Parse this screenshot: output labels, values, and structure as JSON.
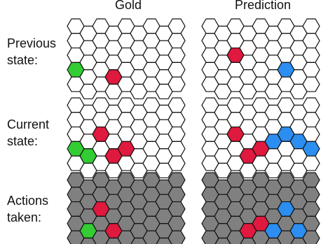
{
  "columns": [
    "Gold",
    "Prediction"
  ],
  "rows": [
    {
      "label_line1": "Previous",
      "label_line2": "state:"
    },
    {
      "label_line1": "Current",
      "label_line2": "state:"
    },
    {
      "label_line1": "Actions",
      "label_line2": "taken:"
    }
  ],
  "colors": {
    "empty": "#ffffff",
    "gray": "#808080",
    "green": "#33cc33",
    "red": "#e0193e",
    "blue": "#2b8ef0"
  },
  "grid": {
    "columns": 7,
    "rows": 5
  },
  "panels": [
    {
      "row": 0,
      "col": 0,
      "background": "empty",
      "cells": [
        {
          "c": 0,
          "r": 3,
          "color": "green"
        },
        {
          "c": 3,
          "r": 3,
          "color": "red"
        }
      ]
    },
    {
      "row": 0,
      "col": 1,
      "background": "empty",
      "cells": [
        {
          "c": 2,
          "r": 2,
          "color": "red"
        },
        {
          "c": 6,
          "r": 3,
          "color": "blue"
        }
      ]
    },
    {
      "row": 1,
      "col": 0,
      "background": "empty",
      "cells": [
        {
          "c": 0,
          "r": 3,
          "color": "green"
        },
        {
          "c": 1,
          "r": 3,
          "color": "green"
        },
        {
          "c": 2,
          "r": 2,
          "color": "red"
        },
        {
          "c": 3,
          "r": 3,
          "color": "red"
        },
        {
          "c": 4,
          "r": 3,
          "color": "red"
        }
      ]
    },
    {
      "row": 1,
      "col": 1,
      "background": "empty",
      "cells": [
        {
          "c": 2,
          "r": 2,
          "color": "red"
        },
        {
          "c": 3,
          "r": 3,
          "color": "red"
        },
        {
          "c": 4,
          "r": 3,
          "color": "red"
        },
        {
          "c": 5,
          "r": 2,
          "color": "blue"
        },
        {
          "c": 6,
          "r": 2,
          "color": "blue"
        },
        {
          "c": 7,
          "r": 2,
          "color": "blue"
        },
        {
          "c": 8,
          "r": 3,
          "color": "blue"
        }
      ]
    },
    {
      "row": 2,
      "col": 0,
      "background": "gray",
      "cells": [
        {
          "c": 1,
          "r": 3,
          "color": "green"
        },
        {
          "c": 2,
          "r": 2,
          "color": "red"
        },
        {
          "c": 3,
          "r": 3,
          "color": "red"
        }
      ]
    },
    {
      "row": 2,
      "col": 1,
      "background": "gray",
      "cells": [
        {
          "c": 3,
          "r": 3,
          "color": "red"
        },
        {
          "c": 4,
          "r": 3,
          "color": "red"
        },
        {
          "c": 5,
          "r": 3,
          "color": "blue"
        },
        {
          "c": 6,
          "r": 2,
          "color": "blue"
        },
        {
          "c": 7,
          "r": 3,
          "color": "blue"
        }
      ]
    }
  ]
}
